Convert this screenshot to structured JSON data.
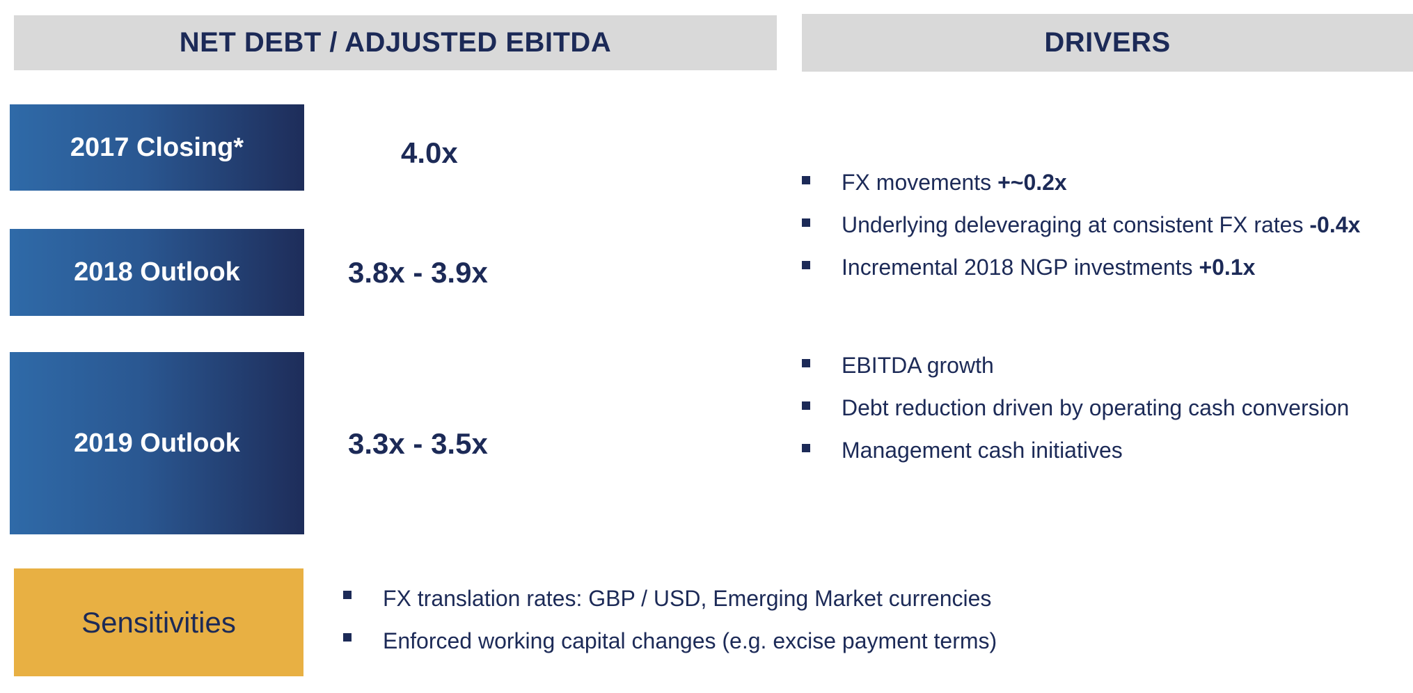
{
  "headers": {
    "left": "NET DEBT / ADJUSTED EBITDA",
    "right": "DRIVERS"
  },
  "periods": [
    {
      "label": "2017 Closing*",
      "ratio": "4.0x"
    },
    {
      "label": "2018 Outlook",
      "ratio": "3.8x - 3.9x"
    },
    {
      "label": "2019 Outlook",
      "ratio": "3.3x - 3.5x"
    }
  ],
  "drivers_2018": [
    {
      "text": "FX movements ",
      "value": "+~0.2x"
    },
    {
      "text": "Underlying deleveraging at consistent FX rates ",
      "value": "-0.4x"
    },
    {
      "text": "Incremental 2018 NGP investments ",
      "value": "+0.1x"
    }
  ],
  "drivers_2019": [
    {
      "text": "EBITDA growth"
    },
    {
      "text": "Debt reduction driven by operating cash conversion"
    },
    {
      "text": "Management cash initiatives"
    }
  ],
  "sensitivities": {
    "label": "Sensitivities",
    "items": [
      "FX translation rates: GBP / USD, Emerging Market currencies",
      "Enforced working capital changes (e.g. excise payment terms)"
    ]
  },
  "colors": {
    "navy": "#1c2a57",
    "header_grey": "#d9d9d9",
    "gradient_start": "#2f6aa8",
    "gradient_end": "#1e2d5a",
    "sensitivities_gold": "#e8b043"
  }
}
